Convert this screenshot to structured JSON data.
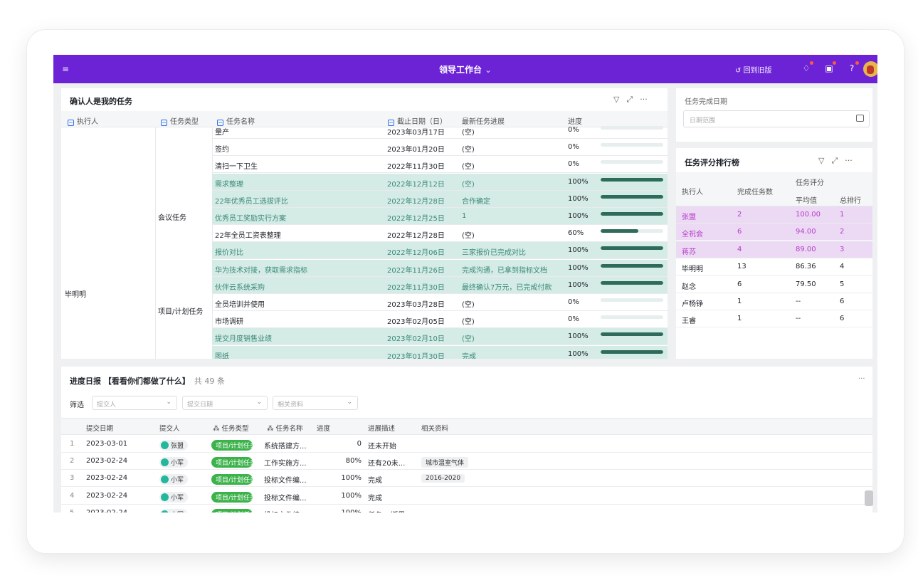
{
  "topbar": {
    "menu_icon": "≡",
    "title": "领导工作台",
    "chevron": "⌄",
    "old_version": "回到旧版"
  },
  "tasks": {
    "title": "确认人是我的任务",
    "columns": [
      "执行人",
      "任务类型",
      "任务名称",
      "截止日期（日）",
      "最新任务进展",
      "进度"
    ],
    "owner": "毕明明",
    "groups": [
      "会议任务",
      "项目/计划任务"
    ],
    "rows": [
      {
        "name": "量产",
        "date": "2023年03月17日",
        "progress": "(空)",
        "pct": "0%",
        "hl": false
      },
      {
        "name": "签约",
        "date": "2023年01月20日",
        "progress": "(空)",
        "pct": "0%",
        "hl": false
      },
      {
        "name": "清扫一下卫生",
        "date": "2022年11月30日",
        "progress": "(空)",
        "pct": "0%",
        "hl": false
      },
      {
        "name": "需求整理",
        "date": "2022年12月12日",
        "progress": "(空)",
        "pct": "100%",
        "hl": true
      },
      {
        "name": "22年优秀员工选拔评比",
        "date": "2022年12月28日",
        "progress": "合作确定",
        "pct": "100%",
        "hl": true
      },
      {
        "name": "优秀员工奖励实行方案",
        "date": "2022年12月25日",
        "progress": "1",
        "pct": "100%",
        "hl": true
      },
      {
        "name": "22年全员工资表整理",
        "date": "2022年12月28日",
        "progress": "(空)",
        "pct": "60%",
        "hl": false
      },
      {
        "name": "报价对比",
        "date": "2022年12月06日",
        "progress": "三家报价已完成对比",
        "pct": "100%",
        "hl": true
      },
      {
        "name": "华为技术对接，获取需求指标",
        "date": "2022年11月26日",
        "progress": "完成沟通，已拿到指标文档",
        "pct": "100%",
        "hl": true
      },
      {
        "name": "伙伴云系统采购",
        "date": "2022年11月30日",
        "progress": "最终确认7万元，已完成付款",
        "pct": "100%",
        "hl": true
      },
      {
        "name": "全员培训并使用",
        "date": "2023年03月28日",
        "progress": "(空)",
        "pct": "0%",
        "hl": false
      },
      {
        "name": "市场调研",
        "date": "2023年02月05日",
        "progress": "(空)",
        "pct": "0%",
        "hl": false
      },
      {
        "name": "提交月度销售业绩",
        "date": "2023年02月10日",
        "progress": "(空)",
        "pct": "100%",
        "hl": true
      },
      {
        "name": "图纸",
        "date": "2023年01月30日",
        "progress": "完成",
        "pct": "100%",
        "hl": true
      }
    ]
  },
  "filter": {
    "label": "任务完成日期",
    "placeholder": "日期范围"
  },
  "ranking": {
    "title": "任务评分排行榜",
    "col_executor": "执行人",
    "col_count": "完成任务数",
    "col_group": "任务评分",
    "col_avg": "平均值",
    "col_rank": "总排行",
    "rows": [
      {
        "name": "张盟",
        "count": "2",
        "avg": "100.00",
        "rank": "1",
        "top": true
      },
      {
        "name": "全祝会",
        "count": "6",
        "avg": "94.00",
        "rank": "2",
        "top": true
      },
      {
        "name": "蒋苏",
        "count": "4",
        "avg": "89.00",
        "rank": "3",
        "top": true
      },
      {
        "name": "毕明明",
        "count": "13",
        "avg": "86.36",
        "rank": "4",
        "top": false
      },
      {
        "name": "赵念",
        "count": "6",
        "avg": "79.50",
        "rank": "5",
        "top": false
      },
      {
        "name": "卢杨铮",
        "count": "1",
        "avg": "--",
        "rank": "6",
        "top": false
      },
      {
        "name": "王睿",
        "count": "1",
        "avg": "--",
        "rank": "6",
        "top": false
      }
    ]
  },
  "daily": {
    "title": "进度日报 【看看你们都做了什么】",
    "count": "共 49 条",
    "filter_label": "筛选",
    "filters": [
      "提交人",
      "提交日期",
      "相关资料"
    ],
    "columns": [
      "提交日期",
      "提交人",
      "任务类型",
      "任务名称",
      "进度",
      "进展描述",
      "相关资料"
    ],
    "rows": [
      {
        "no": "1",
        "date": "2023-03-01",
        "user": "张盟",
        "type": "项目/计划任务",
        "task": "系统搭建方...",
        "pct": "0",
        "desc": "还未开始",
        "ref": ""
      },
      {
        "no": "2",
        "date": "2023-02-24",
        "user": "小军",
        "type": "项目/计划任务",
        "task": "工作实施方...",
        "pct": "80%",
        "desc": "还有20未...",
        "ref": "城市温室气体"
      },
      {
        "no": "3",
        "date": "2023-02-24",
        "user": "小军",
        "type": "项目/计划任务",
        "task": "投标文件编...",
        "pct": "100%",
        "desc": "完成",
        "ref": "2016-2020"
      },
      {
        "no": "4",
        "date": "2023-02-24",
        "user": "小军",
        "type": "项目/计划任务",
        "task": "投标文件编...",
        "pct": "100%",
        "desc": "完成",
        "ref": ""
      },
      {
        "no": "5",
        "date": "2023-02-24",
        "user": "小军",
        "type": "项目/计划任务",
        "task": "投标文件编...",
        "pct": "100%",
        "desc": "任务aa版里",
        "ref": ""
      }
    ]
  }
}
